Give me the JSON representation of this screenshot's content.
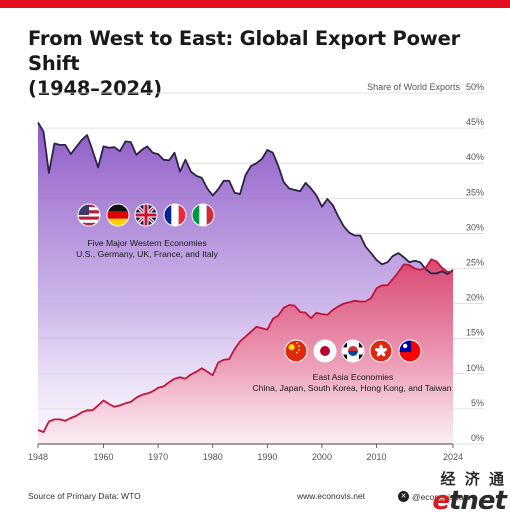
{
  "title_line1": "From West to East: Global Export Power Shift",
  "title_line2": "(1948–2024)",
  "source": "Source of Primary Data: WTO",
  "website": "www.econovis.net",
  "x_handle": "@econovisdata",
  "watermark_top": "经 济 通",
  "watermark_bottom": "etnet",
  "colors": {
    "brand_red": "#e5101f",
    "west_line": "#2a2346",
    "west_fill_top": "#8e59c6",
    "east_line": "#c3143c",
    "east_fill_top": "#d94771"
  },
  "chart_data": {
    "type": "area",
    "ylabel": "Share of World Exports",
    "ylim": [
      0,
      50
    ],
    "yticks": [
      "0%",
      "5%",
      "10%",
      "15%",
      "20%",
      "25%",
      "30%",
      "35%",
      "40%",
      "45%",
      "50%"
    ],
    "xlim": [
      1948,
      2024
    ],
    "xticks": [
      "1948",
      "1960",
      "1970",
      "1980",
      "1990",
      "2000",
      "2010",
      "2024"
    ],
    "groups": [
      {
        "title": "Five Major Western Economies",
        "subtitle": "U.S., Germany, UK, France, and Italy",
        "flags": [
          "us-flag-icon",
          "germany-flag-icon",
          "uk-flag-icon",
          "france-flag-icon",
          "italy-flag-icon"
        ]
      },
      {
        "title": "East Asia Economies",
        "subtitle": "China, Japan, South Korea, Hong Kong, and Taiwan",
        "flags": [
          "china-flag-icon",
          "japan-flag-icon",
          "south-korea-flag-icon",
          "hong-kong-flag-icon",
          "taiwan-flag-icon"
        ]
      }
    ],
    "x": [
      1948,
      1949,
      1950,
      1951,
      1952,
      1953,
      1954,
      1955,
      1956,
      1957,
      1958,
      1959,
      1960,
      1961,
      1962,
      1963,
      1964,
      1965,
      1966,
      1967,
      1968,
      1969,
      1970,
      1971,
      1972,
      1973,
      1974,
      1975,
      1976,
      1977,
      1978,
      1979,
      1980,
      1981,
      1982,
      1983,
      1984,
      1985,
      1986,
      1987,
      1988,
      1989,
      1990,
      1991,
      1992,
      1993,
      1994,
      1995,
      1996,
      1997,
      1998,
      1999,
      2000,
      2001,
      2002,
      2003,
      2004,
      2005,
      2006,
      2007,
      2008,
      2009,
      2010,
      2011,
      2012,
      2013,
      2014,
      2015,
      2016,
      2017,
      2018,
      2019,
      2020,
      2021,
      2022,
      2023,
      2024
    ],
    "series": [
      {
        "values": [
          45.8,
          44.5,
          38.6,
          42.8,
          42.6,
          42.6,
          41.3,
          42.3,
          43.3,
          44.0,
          41.8,
          39.4,
          42.4,
          42.2,
          42.3,
          41.7,
          43.1,
          43.0,
          41.2,
          41.9,
          42.4,
          41.5,
          41.3,
          40.5,
          40.4,
          41.5,
          38.8,
          40.5,
          38.8,
          38.2,
          37.9,
          36.4,
          35.4,
          36.3,
          37.5,
          37.5,
          35.8,
          35.6,
          38.3,
          39.6,
          40.0,
          40.6,
          41.9,
          41.5,
          39.6,
          37.3,
          36.4,
          36.2,
          36.0,
          37.2,
          36.4,
          35.4,
          33.8,
          34.9,
          34.0,
          32.4,
          31.0,
          30.1,
          29.7,
          29.7,
          28.1,
          27.2,
          26.2,
          25.6,
          25.9,
          26.8,
          27.2,
          26.6,
          25.9,
          26.1,
          25.9,
          24.9,
          24.3,
          24.3,
          24.6,
          24.2,
          24.8
        ]
      },
      {
        "values": [
          2.0,
          1.7,
          3.2,
          3.5,
          3.5,
          3.3,
          3.7,
          4.0,
          4.5,
          4.8,
          4.8,
          5.5,
          6.2,
          5.7,
          5.3,
          5.5,
          5.8,
          6.0,
          6.6,
          7.0,
          7.2,
          7.5,
          8.0,
          8.2,
          8.8,
          9.3,
          9.5,
          9.3,
          9.9,
          10.3,
          10.8,
          10.3,
          9.8,
          11.6,
          12.0,
          12.1,
          13.5,
          14.6,
          15.3,
          16.0,
          16.7,
          16.5,
          16.3,
          17.8,
          18.3,
          19.4,
          19.8,
          19.7,
          18.8,
          18.7,
          17.9,
          18.7,
          18.5,
          18.4,
          19.1,
          19.6,
          20.0,
          20.2,
          20.4,
          20.3,
          20.3,
          20.8,
          22.2,
          22.6,
          22.6,
          23.5,
          24.5,
          25.6,
          25.5,
          25.0,
          24.8,
          25.1,
          26.3,
          26.0,
          25.1,
          24.5,
          24.6
        ]
      }
    ]
  }
}
